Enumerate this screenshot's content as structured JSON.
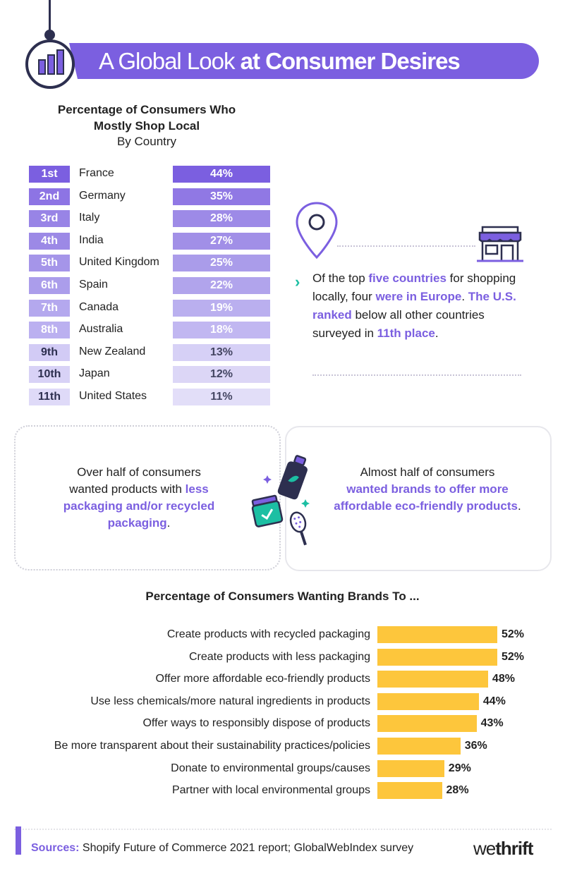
{
  "header": {
    "title_light": "A Global Look",
    "title_bold": "at Consumer Desires",
    "logo_icon": "bar-chart-icon"
  },
  "colors": {
    "purple": "#7b5fe0",
    "yellow": "#fdc63c",
    "teal": "#1cbfa3",
    "navy": "#2d2f4f"
  },
  "chart_data": [
    {
      "type": "table",
      "title_line1": "Percentage of Consumers Who",
      "title_line2": "Mostly Shop Local",
      "subtitle": "By Country",
      "ranks": [
        "1st",
        "2nd",
        "3rd",
        "4th",
        "5th",
        "6th",
        "7th",
        "8th",
        "9th",
        "10th",
        "11th"
      ],
      "categories": [
        "France",
        "Germany",
        "Italy",
        "India",
        "United Kingdom",
        "Spain",
        "Canada",
        "Australia",
        "New Zealand",
        "Japan",
        "United States"
      ],
      "values": [
        44,
        35,
        28,
        27,
        25,
        22,
        19,
        18,
        13,
        12,
        11
      ],
      "value_labels": [
        "44%",
        "35%",
        "28%",
        "27%",
        "25%",
        "22%",
        "19%",
        "18%",
        "13%",
        "12%",
        "11%"
      ]
    },
    {
      "type": "bar",
      "title": "Percentage of Consumers Wanting Brands To ...",
      "categories": [
        "Create products with recycled packaging",
        "Create products with less packaging",
        "Offer more affordable eco-friendly products",
        "Use less chemicals/more natural ingredients in products",
        "Offer ways to responsibly dispose of products",
        "Be more transparent about their sustainability practices/policies",
        "Donate to environmental groups/causes",
        "Partner with local environmental groups"
      ],
      "values": [
        52,
        52,
        48,
        44,
        43,
        36,
        29,
        28
      ],
      "value_labels": [
        "52%",
        "52%",
        "48%",
        "44%",
        "43%",
        "36%",
        "29%",
        "28%"
      ],
      "xlim": [
        0,
        52
      ]
    }
  ],
  "callout": {
    "icons": [
      "location-pin-icon",
      "storefront-icon",
      "chevron-right-icon"
    ],
    "chevron": "›",
    "p1": "Of the top ",
    "h1": "five countries",
    "p2": " for shopping locally, four ",
    "h2": "were in Europe",
    "p3": ". ",
    "h3": "The U.S. ranked",
    "p4": " below all other countries surveyed in ",
    "h4": "11th place",
    "p5": "."
  },
  "boxes": {
    "left": {
      "line1": "Over half of consumers",
      "line2": "wanted products with ",
      "hl": "less packaging and/or recycled packaging",
      "end": "."
    },
    "right": {
      "line1": "Almost half of consumers",
      "hl": "wanted brands to offer more affordable eco-friendly products",
      "end": "."
    },
    "icons": [
      "bottle-icon",
      "jar-icon",
      "hairbrush-icon",
      "sparkle-icon"
    ]
  },
  "footer": {
    "sources_label": "Sources:",
    "sources_text": " Shopify Future of Commerce 2021 report; GlobalWebIndex survey",
    "brand_light": "we",
    "brand_bold": "thrift"
  }
}
